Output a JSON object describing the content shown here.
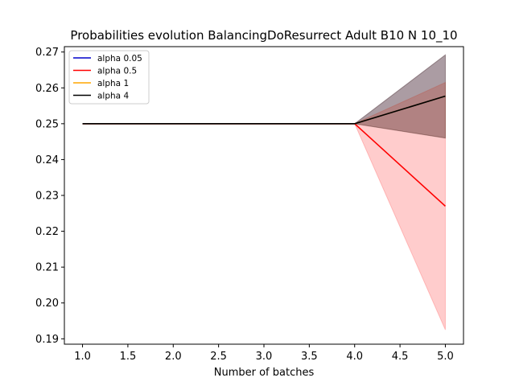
{
  "chart_data": {
    "type": "line",
    "title": "Probabilities evolution BalancingDoResurrect Adult B10 N 10_10",
    "xlabel": "Number of batches",
    "ylabel": "",
    "xlim": [
      0.8,
      5.2
    ],
    "ylim": [
      0.1885,
      0.2715
    ],
    "xticks": [
      1.0,
      1.5,
      2.0,
      2.5,
      3.0,
      3.5,
      4.0,
      4.5,
      5.0
    ],
    "xtick_labels": [
      "1.0",
      "1.5",
      "2.0",
      "2.5",
      "3.0",
      "3.5",
      "4.0",
      "4.5",
      "5.0"
    ],
    "yticks": [
      0.19,
      0.2,
      0.21,
      0.22,
      0.23,
      0.24,
      0.25,
      0.26,
      0.27
    ],
    "ytick_labels": [
      "0.19",
      "0.20",
      "0.21",
      "0.22",
      "0.23",
      "0.24",
      "0.25",
      "0.26",
      "0.27"
    ],
    "grid": false,
    "legend_position": "top-left",
    "x": [
      1,
      2,
      3,
      4,
      5
    ],
    "series": [
      {
        "name": "alpha 0.05",
        "color": "#0000cc",
        "values": [
          0.25,
          0.25,
          0.25,
          0.25,
          0.2577
        ],
        "band_low": [
          0.25,
          0.25,
          0.25,
          0.25,
          0.246
        ],
        "band_high": [
          0.25,
          0.25,
          0.25,
          0.25,
          0.2692
        ],
        "band_color": "#0000ff",
        "band_opacity": 0.2
      },
      {
        "name": "alpha 0.5",
        "color": "#ff0000",
        "values": [
          0.25,
          0.25,
          0.25,
          0.25,
          0.227
        ],
        "band_low": [
          0.25,
          0.25,
          0.25,
          0.25,
          0.1925
        ],
        "band_high": [
          0.25,
          0.25,
          0.25,
          0.25,
          0.2615
        ],
        "band_color": "#ff0000",
        "band_opacity": 0.2
      },
      {
        "name": "alpha 1",
        "color": "#ffa500",
        "values": [
          0.25,
          0.25,
          0.25,
          0.25,
          0.2577
        ],
        "band_low": [
          0.25,
          0.25,
          0.25,
          0.25,
          0.246
        ],
        "band_high": [
          0.25,
          0.25,
          0.25,
          0.25,
          0.2692
        ],
        "band_color": "#ffa500",
        "band_opacity": 0.2
      },
      {
        "name": "alpha 4",
        "color": "#000000",
        "values": [
          0.25,
          0.25,
          0.25,
          0.25,
          0.2577
        ],
        "band_low": [
          0.25,
          0.25,
          0.25,
          0.25,
          0.246
        ],
        "band_high": [
          0.25,
          0.25,
          0.25,
          0.25,
          0.2692
        ],
        "band_color": "#000000",
        "band_opacity": 0.2
      }
    ]
  }
}
